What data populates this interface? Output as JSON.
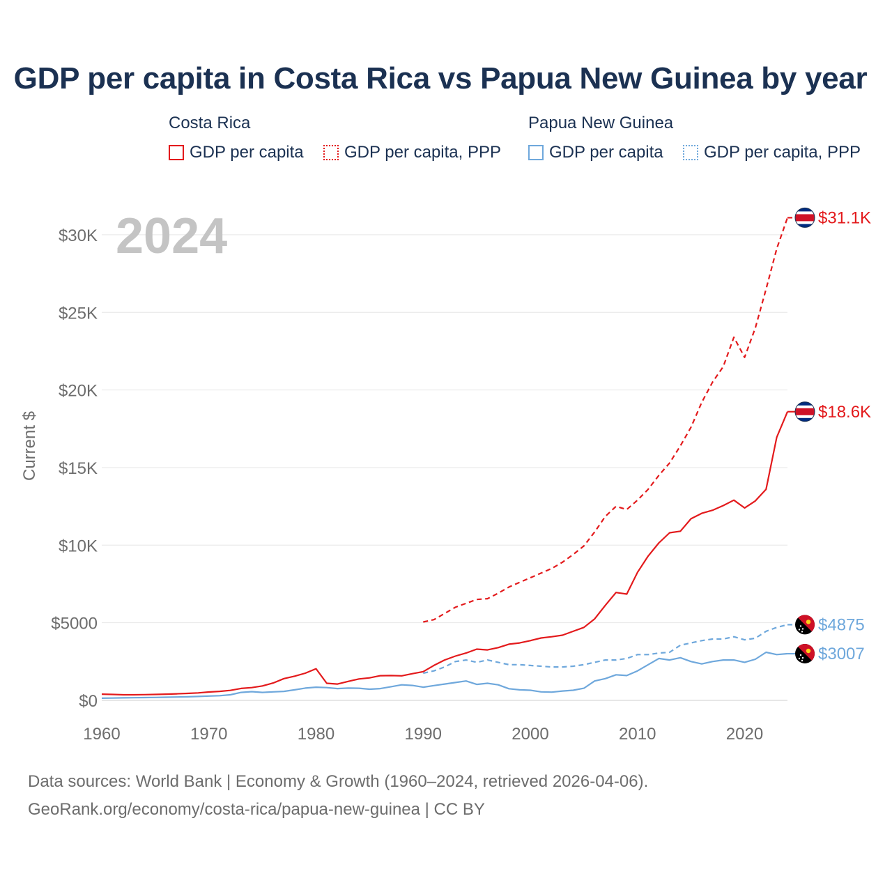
{
  "title": "GDP per capita in Costa Rica vs Papua New Guinea by year",
  "legend": {
    "groups": [
      {
        "name": "Costa Rica",
        "items": [
          "GDP per capita",
          "GDP per capita, PPP"
        ],
        "color": "#e31a1c"
      },
      {
        "name": "Papua New Guinea",
        "items": [
          "GDP per capita",
          "GDP per capita, PPP"
        ],
        "color": "#6fa8dc"
      }
    ]
  },
  "footer": {
    "line1": "Data sources: World Bank | Economy & Growth (1960–2024, retrieved 2026-04-06).",
    "line2": "GeoRank.org/economy/costa-rica/papua-new-guinea | CC BY"
  },
  "chart_data": {
    "type": "line",
    "title": "GDP per capita in Costa Rica vs Papua New Guinea by year",
    "year_label": "2024",
    "xlabel": "",
    "ylabel": "Current $",
    "xlim": [
      1960,
      2024
    ],
    "ylim": [
      0,
      32000
    ],
    "xticks": [
      1960,
      1970,
      1980,
      1990,
      2000,
      2010,
      2020
    ],
    "yticks": [
      0,
      5000,
      10000,
      15000,
      20000,
      25000,
      30000
    ],
    "ytick_labels": [
      "$0",
      "$5000",
      "$10K",
      "$15K",
      "$20K",
      "$25K",
      "$30K"
    ],
    "grid": true,
    "series": [
      {
        "name": "Costa Rica GDP per capita",
        "color": "#e31a1c",
        "dash": false,
        "end_label": "$18.6K",
        "flag": "costa-rica",
        "points": [
          [
            1960,
            400
          ],
          [
            1961,
            380
          ],
          [
            1962,
            360
          ],
          [
            1963,
            360
          ],
          [
            1964,
            370
          ],
          [
            1965,
            380
          ],
          [
            1966,
            400
          ],
          [
            1967,
            420
          ],
          [
            1968,
            450
          ],
          [
            1969,
            480
          ],
          [
            1970,
            540
          ],
          [
            1971,
            580
          ],
          [
            1972,
            640
          ],
          [
            1973,
            770
          ],
          [
            1974,
            820
          ],
          [
            1975,
            930
          ],
          [
            1976,
            1120
          ],
          [
            1977,
            1400
          ],
          [
            1978,
            1560
          ],
          [
            1979,
            1750
          ],
          [
            1980,
            2040
          ],
          [
            1981,
            1100
          ],
          [
            1982,
            1050
          ],
          [
            1983,
            1220
          ],
          [
            1984,
            1380
          ],
          [
            1985,
            1450
          ],
          [
            1986,
            1590
          ],
          [
            1987,
            1600
          ],
          [
            1988,
            1580
          ],
          [
            1989,
            1720
          ],
          [
            1990,
            1850
          ],
          [
            1991,
            2250
          ],
          [
            1992,
            2600
          ],
          [
            1993,
            2850
          ],
          [
            1994,
            3050
          ],
          [
            1995,
            3300
          ],
          [
            1996,
            3250
          ],
          [
            1997,
            3400
          ],
          [
            1998,
            3620
          ],
          [
            1999,
            3700
          ],
          [
            2000,
            3850
          ],
          [
            2001,
            4020
          ],
          [
            2002,
            4100
          ],
          [
            2003,
            4200
          ],
          [
            2004,
            4450
          ],
          [
            2005,
            4700
          ],
          [
            2006,
            5250
          ],
          [
            2007,
            6120
          ],
          [
            2008,
            6950
          ],
          [
            2009,
            6850
          ],
          [
            2010,
            8250
          ],
          [
            2011,
            9300
          ],
          [
            2012,
            10150
          ],
          [
            2013,
            10800
          ],
          [
            2014,
            10900
          ],
          [
            2015,
            11700
          ],
          [
            2016,
            12050
          ],
          [
            2017,
            12250
          ],
          [
            2018,
            12550
          ],
          [
            2019,
            12900
          ],
          [
            2020,
            12400
          ],
          [
            2021,
            12850
          ],
          [
            2022,
            13600
          ],
          [
            2023,
            16950
          ],
          [
            2024,
            18600
          ]
        ]
      },
      {
        "name": "Costa Rica GDP per capita, PPP",
        "color": "#e31a1c",
        "dash": true,
        "end_label": "$31.1K",
        "flag": "costa-rica",
        "points": [
          [
            1990,
            5050
          ],
          [
            1991,
            5200
          ],
          [
            1992,
            5600
          ],
          [
            1993,
            6000
          ],
          [
            1994,
            6250
          ],
          [
            1995,
            6500
          ],
          [
            1996,
            6550
          ],
          [
            1997,
            6900
          ],
          [
            1998,
            7300
          ],
          [
            1999,
            7600
          ],
          [
            2000,
            7900
          ],
          [
            2001,
            8200
          ],
          [
            2002,
            8500
          ],
          [
            2003,
            8900
          ],
          [
            2004,
            9400
          ],
          [
            2005,
            9950
          ],
          [
            2006,
            10850
          ],
          [
            2007,
            11850
          ],
          [
            2008,
            12500
          ],
          [
            2009,
            12300
          ],
          [
            2010,
            12900
          ],
          [
            2011,
            13600
          ],
          [
            2012,
            14500
          ],
          [
            2013,
            15300
          ],
          [
            2014,
            16400
          ],
          [
            2015,
            17600
          ],
          [
            2016,
            19200
          ],
          [
            2017,
            20500
          ],
          [
            2018,
            21500
          ],
          [
            2019,
            23400
          ],
          [
            2020,
            22100
          ],
          [
            2021,
            24000
          ],
          [
            2022,
            26500
          ],
          [
            2023,
            29100
          ],
          [
            2024,
            31100
          ]
        ]
      },
      {
        "name": "Papua New Guinea GDP per capita",
        "color": "#6fa8dc",
        "dash": false,
        "end_label": "$3007",
        "flag": "papua-new-guinea",
        "points": [
          [
            1960,
            140
          ],
          [
            1961,
            150
          ],
          [
            1962,
            160
          ],
          [
            1963,
            170
          ],
          [
            1964,
            180
          ],
          [
            1965,
            190
          ],
          [
            1966,
            200
          ],
          [
            1967,
            215
          ],
          [
            1968,
            230
          ],
          [
            1969,
            250
          ],
          [
            1970,
            280
          ],
          [
            1971,
            300
          ],
          [
            1972,
            360
          ],
          [
            1973,
            510
          ],
          [
            1974,
            560
          ],
          [
            1975,
            510
          ],
          [
            1976,
            550
          ],
          [
            1977,
            580
          ],
          [
            1978,
            680
          ],
          [
            1979,
            790
          ],
          [
            1980,
            850
          ],
          [
            1981,
            820
          ],
          [
            1982,
            760
          ],
          [
            1983,
            790
          ],
          [
            1984,
            780
          ],
          [
            1985,
            720
          ],
          [
            1986,
            760
          ],
          [
            1987,
            880
          ],
          [
            1988,
            1000
          ],
          [
            1989,
            960
          ],
          [
            1990,
            850
          ],
          [
            1991,
            950
          ],
          [
            1992,
            1050
          ],
          [
            1993,
            1150
          ],
          [
            1994,
            1250
          ],
          [
            1995,
            1030
          ],
          [
            1996,
            1100
          ],
          [
            1997,
            1000
          ],
          [
            1998,
            750
          ],
          [
            1999,
            680
          ],
          [
            2000,
            650
          ],
          [
            2001,
            550
          ],
          [
            2002,
            530
          ],
          [
            2003,
            600
          ],
          [
            2004,
            650
          ],
          [
            2005,
            780
          ],
          [
            2006,
            1250
          ],
          [
            2007,
            1400
          ],
          [
            2008,
            1650
          ],
          [
            2009,
            1600
          ],
          [
            2010,
            1900
          ],
          [
            2011,
            2300
          ],
          [
            2012,
            2700
          ],
          [
            2013,
            2600
          ],
          [
            2014,
            2750
          ],
          [
            2015,
            2500
          ],
          [
            2016,
            2350
          ],
          [
            2017,
            2500
          ],
          [
            2018,
            2600
          ],
          [
            2019,
            2600
          ],
          [
            2020,
            2450
          ],
          [
            2021,
            2650
          ],
          [
            2022,
            3100
          ],
          [
            2023,
            2950
          ],
          [
            2024,
            3007
          ]
        ]
      },
      {
        "name": "Papua New Guinea GDP per capita, PPP",
        "color": "#6fa8dc",
        "dash": true,
        "end_label": "$4875",
        "flag": "papua-new-guinea",
        "points": [
          [
            1990,
            1750
          ],
          [
            1991,
            1900
          ],
          [
            1992,
            2150
          ],
          [
            1993,
            2500
          ],
          [
            1994,
            2600
          ],
          [
            1995,
            2450
          ],
          [
            1996,
            2600
          ],
          [
            1997,
            2450
          ],
          [
            1998,
            2300
          ],
          [
            1999,
            2300
          ],
          [
            2000,
            2250
          ],
          [
            2001,
            2200
          ],
          [
            2002,
            2150
          ],
          [
            2003,
            2150
          ],
          [
            2004,
            2200
          ],
          [
            2005,
            2300
          ],
          [
            2006,
            2450
          ],
          [
            2007,
            2600
          ],
          [
            2008,
            2600
          ],
          [
            2009,
            2700
          ],
          [
            2010,
            2950
          ],
          [
            2011,
            2950
          ],
          [
            2012,
            3050
          ],
          [
            2013,
            3100
          ],
          [
            2014,
            3550
          ],
          [
            2015,
            3700
          ],
          [
            2016,
            3850
          ],
          [
            2017,
            3950
          ],
          [
            2018,
            3950
          ],
          [
            2019,
            4100
          ],
          [
            2020,
            3900
          ],
          [
            2021,
            4000
          ],
          [
            2022,
            4450
          ],
          [
            2023,
            4700
          ],
          [
            2024,
            4875
          ]
        ]
      }
    ]
  }
}
